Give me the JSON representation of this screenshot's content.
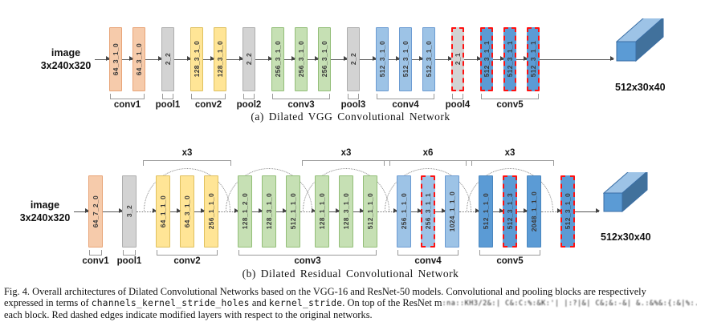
{
  "palette": {
    "orange": {
      "fill": "#F6CBAB",
      "stroke": "#E8A477"
    },
    "gray": {
      "fill": "#D3D3D3",
      "stroke": "#ADADAD"
    },
    "yellow": {
      "fill": "#FFE596",
      "stroke": "#DFC05F"
    },
    "green": {
      "fill": "#C6E0B4",
      "stroke": "#93BE78"
    },
    "lightblue": {
      "fill": "#9DC3E6",
      "stroke": "#6B9BD2"
    },
    "blue": {
      "fill": "#5B9BD5",
      "stroke": "#4A86BF"
    },
    "red_dash": "#FF1010",
    "box_front": "#5B9BD5",
    "box_top": "#9DC3E6",
    "box_side": "#41719C",
    "box_stroke": "#3A6EA5"
  },
  "figure": {
    "panel_a": {
      "caption": "(a) Dilated VGG Convolutional Network",
      "input_label_line1": "image",
      "input_label_line2": "3x240x320",
      "output_label": "512x30x40",
      "groups": [
        {
          "label": "conv1",
          "color": "orange",
          "subgroups": [
            {
              "blocks": [
                {
                  "text": "64_3_1_0"
                },
                {
                  "text": "64_3_1_0"
                }
              ]
            }
          ]
        },
        {
          "label": "pool1",
          "color": "gray",
          "subgroups": [
            {
              "blocks": [
                {
                  "text": "2_2"
                }
              ]
            }
          ]
        },
        {
          "label": "conv2",
          "color": "yellow",
          "subgroups": [
            {
              "blocks": [
                {
                  "text": "128_3_1_0"
                },
                {
                  "text": "128_3_1_0"
                }
              ]
            }
          ]
        },
        {
          "label": "pool2",
          "color": "gray",
          "subgroups": [
            {
              "blocks": [
                {
                  "text": "2_2"
                }
              ]
            }
          ]
        },
        {
          "label": "conv3",
          "color": "green",
          "subgroups": [
            {
              "blocks": [
                {
                  "text": "256_3_1_0"
                },
                {
                  "text": "256_3_1_0"
                },
                {
                  "text": "256_3_1_0"
                }
              ]
            }
          ]
        },
        {
          "label": "pool3",
          "color": "gray",
          "subgroups": [
            {
              "blocks": [
                {
                  "text": "2_2"
                }
              ]
            }
          ]
        },
        {
          "label": "conv4",
          "color": "lightblue",
          "subgroups": [
            {
              "blocks": [
                {
                  "text": "512_3_1_0"
                },
                {
                  "text": "512_3_1_0"
                },
                {
                  "text": "512_3_1_0"
                }
              ]
            }
          ]
        },
        {
          "label": "pool4",
          "color": "gray",
          "subgroups": [
            {
              "blocks": [
                {
                  "text": "2_1",
                  "dashed": true
                }
              ]
            }
          ]
        },
        {
          "label": "conv5",
          "color": "blue",
          "subgroups": [
            {
              "blocks": [
                {
                  "text": "512_3_1_1",
                  "dashed": true
                },
                {
                  "text": "512_3_1_1",
                  "dashed": true
                },
                {
                  "text": "512_3_1_1",
                  "dashed": true
                }
              ]
            }
          ]
        }
      ]
    },
    "panel_b": {
      "caption": "(b) Dilated Residual Convolutional Network",
      "input_label_line1": "image",
      "input_label_line2": "3x240x320",
      "output_label": "512x30x40",
      "groups": [
        {
          "label": "conv1",
          "color": "orange",
          "subgroups": [
            {
              "blocks": [
                {
                  "text": "64_7_2_0"
                }
              ]
            }
          ]
        },
        {
          "label": "pool1",
          "color": "gray",
          "subgroups": [
            {
              "blocks": [
                {
                  "text": "3_2"
                }
              ]
            }
          ]
        },
        {
          "label": "conv2",
          "color": "yellow",
          "subgroups": [
            {
              "arc": true,
              "loop": "x3",
              "blocks": [
                {
                  "text": "64_1_1_0"
                },
                {
                  "text": "64_3_1_0"
                },
                {
                  "text": "256_1_1_0"
                }
              ]
            }
          ]
        },
        {
          "label": "conv3",
          "color": "green",
          "subgroups": [
            {
              "arc": true,
              "blocks": [
                {
                  "text": "128_1_2_0"
                },
                {
                  "text": "128_3_1_0"
                },
                {
                  "text": "512_1_1_0"
                }
              ]
            },
            {
              "arc": true,
              "loop": "x3",
              "blocks": [
                {
                  "text": "128_1_1_0"
                },
                {
                  "text": "128_3_1_0"
                },
                {
                  "text": "512_1_1_0"
                }
              ]
            }
          ]
        },
        {
          "label": "conv4",
          "color": "lightblue",
          "subgroups": [
            {
              "arc": true,
              "loop": "x6",
              "blocks": [
                {
                  "text": "256_1_1_0"
                },
                {
                  "text": "256_3_1_1",
                  "dashed": true
                },
                {
                  "text": "1024_1_1_0"
                }
              ]
            }
          ]
        },
        {
          "label": "conv5",
          "color": "blue",
          "subgroups": [
            {
              "arc": true,
              "loop": "x3",
              "blocks": [
                {
                  "text": "512_1_1_0"
                },
                {
                  "text": "512_3_1_3",
                  "dashed": true
                },
                {
                  "text": "2048_1_1_0"
                }
              ]
            }
          ]
        },
        {
          "label": "",
          "color": "blue",
          "subgroups": [
            {
              "blocks": [
                {
                  "text": "512_3_1_0",
                  "dashed": true
                }
              ]
            }
          ]
        }
      ]
    },
    "fig_caption": {
      "line1": "Fig. 4.   Overall architectures of Dilated Convolutional Networks based on the VGG-16 and ResNet-50 models. Convolutional and pooling blocks are respectively",
      "line2_pre": "expressed in terms of ",
      "line2_mono1": "channels_kernel_stride_holes",
      "line2_mid": " and ",
      "line2_mono2": "kernel_stride",
      "line2_post": ". On top of the ResNet m",
      "line2_garbled": ":na::KH3/2&:| C&:C:%:&K:'| |:?|&| C&;&:-&| &.:&%&:{:&|%:.&| &.",
      "line3": "each block. Red dashed edges indicate modified layers with respect to the original networks."
    }
  }
}
